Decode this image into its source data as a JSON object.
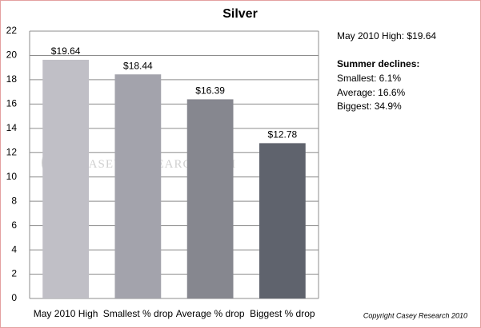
{
  "chart_data": {
    "type": "bar",
    "title": "Silver",
    "categories": [
      "May 2010 High",
      "Smallest % drop",
      "Average % drop",
      "Biggest % drop"
    ],
    "values": [
      19.64,
      18.44,
      16.39,
      12.78
    ],
    "value_labels": [
      "$19.64",
      "$18.44",
      "$16.39",
      "$12.78"
    ],
    "colors": [
      "#c0bfc6",
      "#a3a3ac",
      "#86878f",
      "#5f636d"
    ],
    "ylim": [
      0,
      22
    ],
    "yticks": [
      0,
      2,
      4,
      6,
      8,
      10,
      12,
      14,
      16,
      18,
      20,
      22
    ],
    "grid": true,
    "annotations": [
      {
        "text": "May 2010 High:  $19.64",
        "bold": false
      },
      {
        "text": "Summer declines:",
        "bold": true
      },
      {
        "text": "Smallest: 6.1%",
        "bold": false
      },
      {
        "text": "Average: 16.6%",
        "bold": false
      },
      {
        "text": "Biggest: 34.9%",
        "bold": false
      }
    ],
    "watermark": "Casey Research.com",
    "copyright": "Copyright Casey Research 2010"
  }
}
